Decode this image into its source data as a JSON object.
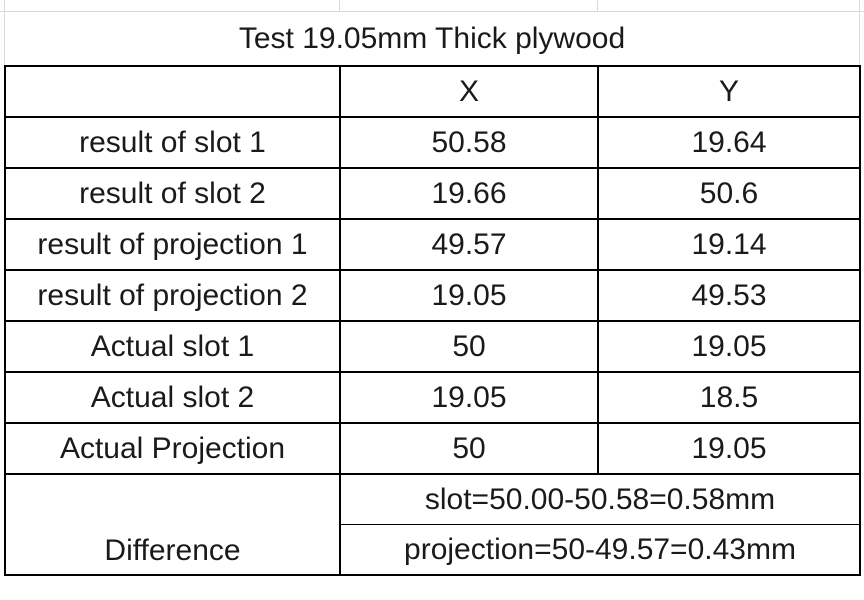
{
  "title": "Test 19.05mm Thick plywood",
  "columns": [
    "",
    "X",
    "Y"
  ],
  "rows": [
    {
      "label": "result of slot 1",
      "x": "50.58",
      "y": "19.64"
    },
    {
      "label": "result of slot 2",
      "x": "19.66",
      "y": "50.6"
    },
    {
      "label": "result of projection 1",
      "x": "49.57",
      "y": "19.14"
    },
    {
      "label": "result of projection 2",
      "x": "19.05",
      "y": "49.53"
    },
    {
      "label": "Actual slot 1",
      "x": "50",
      "y": "19.05"
    },
    {
      "label": "Actual slot 2",
      "x": "19.05",
      "y": "18.5"
    },
    {
      "label": "Actual Projection",
      "x": "50",
      "y": "19.05"
    }
  ],
  "difference": {
    "label": "Difference",
    "line1": "slot=50.00-50.58=0.58mm",
    "line2": "projection=50-49.57=0.43mm"
  }
}
